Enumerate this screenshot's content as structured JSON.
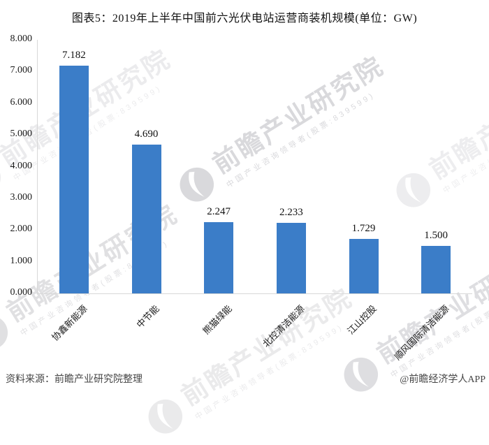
{
  "title": "图表5：2019年上半年中国前六光伏电站运营商装机规模(单位：GW)",
  "footer": {
    "source": "资料来源：前瞻产业研究院整理",
    "credit": "@前瞻经济学人APP"
  },
  "watermark": {
    "brand": "前瞻产业研究院",
    "tagline": "中国产业咨询领导者(股票:839599)",
    "logo_icon": "qianzhan-circle-logo-icon"
  },
  "colors": {
    "bar": "#3b7dc8",
    "axis_line": "#d8d8d8",
    "text": "#111111",
    "footer_text": "#454545",
    "watermark": "#d9d9dc"
  },
  "chart_data": {
    "type": "bar",
    "title": "图表5：2019年上半年中国前六光伏电站运营商装机规模(单位：GW)",
    "unit": "GW",
    "categories": [
      "协鑫新能源",
      "中节能",
      "熊猫绿能",
      "北控清洁能源",
      "江山控股",
      "顺风国际清洁能源"
    ],
    "values": [
      7.182,
      4.69,
      2.247,
      2.233,
      1.729,
      1.5
    ],
    "value_labels": [
      "7.182",
      "4.690",
      "2.247",
      "2.233",
      "1.729",
      "1.500"
    ],
    "xlabel": "",
    "ylabel": "",
    "ylim": [
      0,
      8
    ],
    "ytick_labels": [
      "0.000",
      "1.000",
      "2.000",
      "3.000",
      "4.000",
      "5.000",
      "6.000",
      "7.000",
      "8.000"
    ],
    "grid": false,
    "legend": false,
    "bar_color": "#3b7dc8"
  }
}
